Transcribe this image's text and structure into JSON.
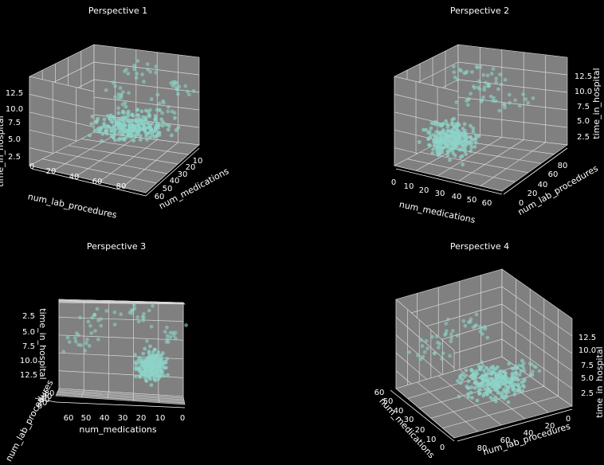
{
  "figure": {
    "background": "#000000",
    "pane_color": "#808080",
    "grid_color": "#d8d8d8",
    "point_color": "#8dd3c7"
  },
  "chart_data": [
    {
      "type": "scatter",
      "title": "Perspective 1",
      "xlabel": "num_lab_procedures",
      "ylabel": "num_medications",
      "zlabel": "time_in_hospital",
      "xticks": [
        "0",
        "20",
        "40",
        "60",
        "80"
      ],
      "yticks": [
        "10",
        "20",
        "30",
        "40",
        "50",
        "60"
      ],
      "zticks": [
        "2.5",
        "5.0",
        "7.5",
        "10.0",
        "12.5"
      ],
      "xlim": [
        0,
        95
      ],
      "ylim": [
        0,
        70
      ],
      "zlim": [
        1,
        14
      ],
      "grid": true
    },
    {
      "type": "scatter",
      "title": "Perspective 2",
      "xlabel": "num_medications",
      "ylabel": "num_lab_procedures",
      "zlabel": "time_in_hospital",
      "xticks": [
        "0",
        "10",
        "20",
        "30",
        "40",
        "50",
        "60"
      ],
      "yticks": [
        "0",
        "20",
        "40",
        "60",
        "80"
      ],
      "zticks": [
        "2.5",
        "5.0",
        "7.5",
        "10.0",
        "12.5"
      ],
      "xlim": [
        0,
        70
      ],
      "ylim": [
        0,
        95
      ],
      "zlim": [
        1,
        14
      ],
      "grid": true
    },
    {
      "type": "scatter",
      "title": "Perspective 3",
      "xlabel": "num_medications",
      "ylabel": "num_lab_procedures",
      "zlabel": "time_in_hospital",
      "xticks": [
        "60",
        "50",
        "40",
        "30",
        "20",
        "10",
        "0"
      ],
      "yticks": [
        "0",
        "20",
        "40",
        "60",
        "80"
      ],
      "zticks": [
        "2.5",
        "5.0",
        "7.5",
        "10.0",
        "12.5"
      ],
      "xlim": [
        0,
        70
      ],
      "ylim": [
        0,
        95
      ],
      "zlim": [
        1,
        14
      ],
      "grid": true
    },
    {
      "type": "scatter",
      "title": "Perspective 4",
      "xlabel": "num_lab_procedures",
      "ylabel": "num_medications",
      "zlabel": "time_in_hospital",
      "xticks": [
        "80",
        "60",
        "40",
        "20",
        "0"
      ],
      "yticks": [
        "0",
        "10",
        "20",
        "30",
        "40",
        "50",
        "60"
      ],
      "zticks": [
        "2.5",
        "5.0",
        "7.5",
        "10.0",
        "12.5"
      ],
      "xlim": [
        0,
        95
      ],
      "ylim": [
        0,
        70
      ],
      "zlim": [
        1,
        14
      ],
      "grid": true
    }
  ]
}
